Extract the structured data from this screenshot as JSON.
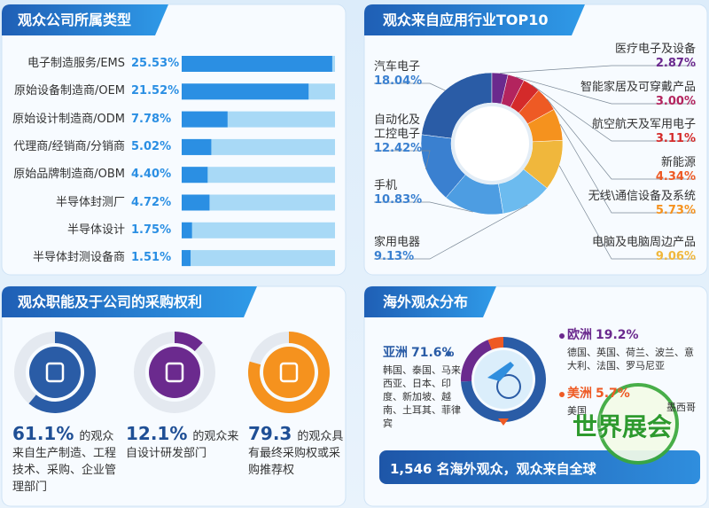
{
  "chart_data": [
    {
      "type": "bar",
      "orientation": "horizontal",
      "title": "观众公司所属类型",
      "categories": [
        "电子制造服务/EMS",
        "原始设备制造商/OEM",
        "原始设计制造商/ODM",
        "代理商/经销商/分销商",
        "原始品牌制造商/OBM",
        "半导体封测厂",
        "半导体设计",
        "半导体封测设备商"
      ],
      "values": [
        25.53,
        21.52,
        7.78,
        5.02,
        4.4,
        4.72,
        1.75,
        1.51
      ],
      "value_labels": [
        "25.53%",
        "21.52%",
        "7.78%",
        "5.02%",
        "4.40%",
        "4.72%",
        "1.75%",
        "1.51%"
      ],
      "xlim": [
        0,
        26
      ],
      "color": "#2b8fe3",
      "track_color": "#a8d9f6"
    },
    {
      "type": "donut",
      "title": "观众来自应用行业TOP10",
      "categories": [
        "汽车电子",
        "自动化及工控电子",
        "手机",
        "家用电器",
        "电脑及电脑周边产品",
        "无线\\通信设备及系统",
        "新能源",
        "航空航天及军用电子",
        "智能家居及可穿戴产品",
        "医疗电子及设备"
      ],
      "values": [
        18.04,
        12.42,
        10.83,
        9.13,
        9.06,
        5.73,
        4.34,
        3.11,
        3.0,
        2.87
      ],
      "value_labels": [
        "18.04%",
        "12.42%",
        "10.83%",
        "9.13%",
        "9.06%",
        "5.73%",
        "4.34%",
        "3.11%",
        "3.00%",
        "2.87%"
      ],
      "colors": [
        "#2a5ca6",
        "#3a80d0",
        "#4d9de2",
        "#6cbbef",
        "#f0b73c",
        "#f5921e",
        "#ee5a24",
        "#d42a2a",
        "#b3245e",
        "#6b2a8e"
      ]
    },
    {
      "type": "ring",
      "title": "观众职能及于公司的采购权利",
      "values": [
        61.1,
        12.1,
        79.3
      ],
      "value_labels": [
        "61.1%",
        "12.1%",
        "79.3"
      ],
      "captions": [
        "的观众来自生产制造、工程技术、采购、企业管理部门",
        "的观众来自设计研发部门",
        "的观众具有最终采购权或采购推荐权"
      ],
      "colors": [
        "#2a5ca6",
        "#6b2a8e",
        "#f5921e"
      ],
      "ylim": [
        0,
        100
      ]
    },
    {
      "type": "donut",
      "title": "海外观众分布",
      "categories": [
        "亚洲",
        "欧洲",
        "美洲"
      ],
      "values": [
        71.6,
        19.2,
        5.7
      ],
      "value_labels": [
        "71.6%",
        "19.2%",
        "5.7%"
      ],
      "descriptions": [
        "韩国、泰国、马来西亚、日本、印度、新加坡、越南、土耳其、菲律宾",
        "德国、英国、荷兰、波兰、意大利、法国、罗马尼亚",
        "美国"
      ],
      "colors": [
        "#2a5ca6",
        "#6b2a8e",
        "#ee5a24"
      ],
      "footer": "1,546 名海外观众，观众来自全球"
    }
  ],
  "watermark": "世界展会",
  "extra_label": "墨西哥"
}
